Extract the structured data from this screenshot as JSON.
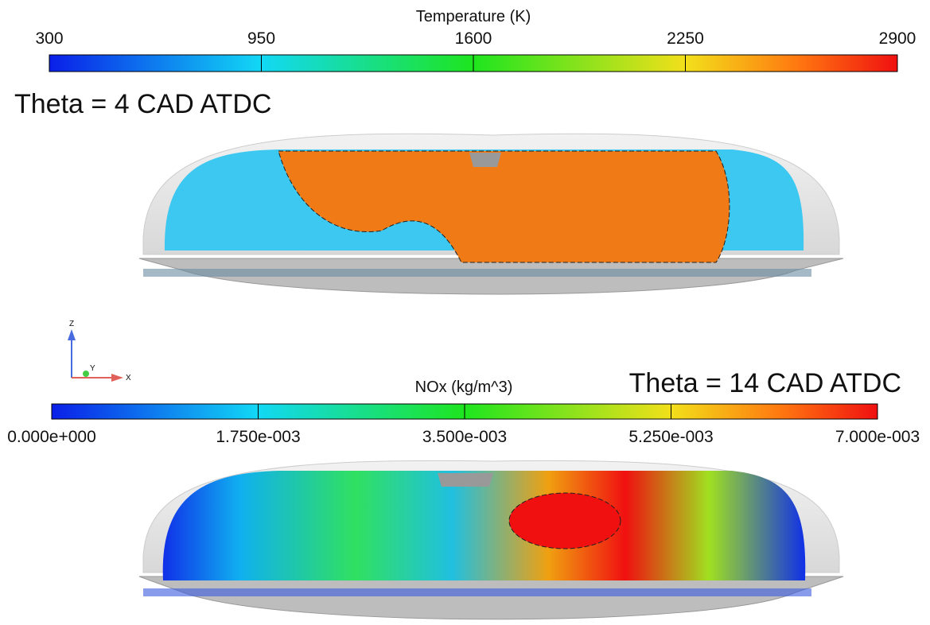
{
  "colorbars": [
    {
      "title": "Temperature (K)",
      "lim": [
        300,
        2900
      ],
      "ticks": [
        300,
        950,
        1600,
        2250,
        2900
      ]
    },
    {
      "title": "NOx (kg/m^3)",
      "lim": [
        0,
        0.007
      ],
      "ticks": [
        {
          "value": 0,
          "label": "0.000e+000"
        },
        {
          "value": 0.00175,
          "label": "1.750e-003"
        },
        {
          "value": 0.0035,
          "label": "3.500e-003"
        },
        {
          "value": 0.00525,
          "label": "5.250e-003"
        },
        {
          "value": 0.007,
          "label": "7.000e-003"
        }
      ]
    }
  ],
  "panels": [
    {
      "label": "Theta = 4 CAD ATDC"
    },
    {
      "label": "Theta = 14 CAD ATDC"
    }
  ],
  "axes_triad": {
    "z": "Z",
    "y": "Y",
    "x": "X"
  }
}
